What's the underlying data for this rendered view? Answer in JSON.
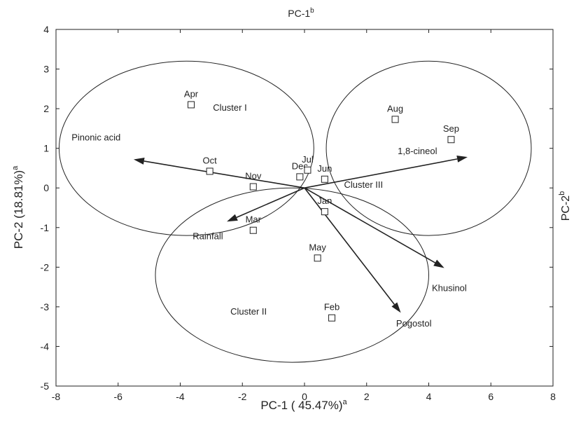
{
  "chart_data": {
    "type": "scatter",
    "title": "",
    "xlabel": "PC-1 ( 45.47%)",
    "xlabel_sup": "a",
    "ylabel": "PC-2 (18.81%)",
    "ylabel_sup": "a",
    "x2label": "PC-1",
    "x2label_sup": "b",
    "y2label": "PC-2",
    "y2label_sup": "b",
    "xlim": [
      -8,
      8
    ],
    "ylim": [
      -5,
      4
    ],
    "xticks": [
      "-8",
      "-6",
      "-4",
      "-2",
      "0",
      "2",
      "4",
      "6",
      "8"
    ],
    "yticks": [
      "-5",
      "-4",
      "-3",
      "-2",
      "-1",
      "0",
      "1",
      "2",
      "3",
      "4"
    ],
    "grid": false,
    "points": [
      {
        "label": "Apr",
        "x": -3.65,
        "y": 2.1
      },
      {
        "label": "Oct",
        "x": -3.05,
        "y": 0.42
      },
      {
        "label": "Nov",
        "x": -1.65,
        "y": 0.03
      },
      {
        "label": "Dec",
        "x": -0.15,
        "y": 0.28
      },
      {
        "label": "Jul",
        "x": 0.1,
        "y": 0.45
      },
      {
        "label": "Jun",
        "x": 0.65,
        "y": 0.22
      },
      {
        "label": "Jan",
        "x": 0.65,
        "y": -0.6
      },
      {
        "label": "Mar",
        "x": -1.65,
        "y": -1.07
      },
      {
        "label": "May",
        "x": 0.42,
        "y": -1.77
      },
      {
        "label": "Feb",
        "x": 0.88,
        "y": -3.28
      },
      {
        "label": "Aug",
        "x": 2.92,
        "y": 1.73
      },
      {
        "label": "Sep",
        "x": 4.72,
        "y": 1.22
      }
    ],
    "vectors": [
      {
        "label": "Pinonic acid",
        "x": -5.5,
        "y": 0.72
      },
      {
        "label": "1,8-cineol",
        "x": 5.25,
        "y": 0.78
      },
      {
        "label": "Rainfall",
        "x": -2.5,
        "y": -0.85
      },
      {
        "label": "Khusinol",
        "x": 4.5,
        "y": -2.02
      },
      {
        "label": "Pogostol",
        "x": 3.1,
        "y": -3.15
      }
    ],
    "clusters": [
      {
        "label": "Cluster I",
        "cx": -3.8,
        "cy": 1.0,
        "rx": 4.1,
        "ry": 2.2
      },
      {
        "label": "Cluster II",
        "cx": -0.4,
        "cy": -2.2,
        "rx": 4.4,
        "ry": 2.2
      },
      {
        "label": "Cluster III",
        "cx": 4.0,
        "cy": 1.0,
        "rx": 3.3,
        "ry": 2.2
      }
    ]
  }
}
